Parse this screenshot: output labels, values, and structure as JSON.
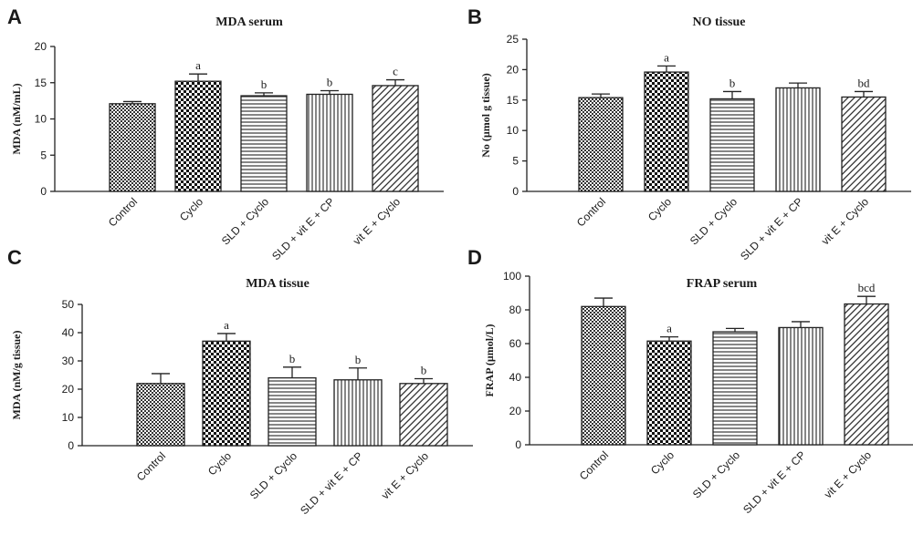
{
  "colors": {
    "ink": "#222222",
    "background": "#ffffff"
  },
  "chart_data": [
    {
      "type": "bar",
      "panel": "A",
      "title": "MDA serum",
      "ylabel": "MDA (nM/mL)",
      "xlabel": "",
      "ylim": [
        0,
        20
      ],
      "yticks": [
        0,
        5,
        10,
        15,
        20
      ],
      "categories": [
        "Control",
        "Cyclo",
        "SLD + Cyclo",
        "SLD + vit E + CP",
        "vit E + Cyclo"
      ],
      "values": [
        12.1,
        15.2,
        13.2,
        13.4,
        14.6
      ],
      "errors": [
        0.3,
        1.0,
        0.4,
        0.5,
        0.8
      ],
      "annotations": [
        "",
        "a",
        "b",
        "b",
        "c"
      ],
      "patterns": [
        "dense-check",
        "coarse-check",
        "horizontal",
        "vertical",
        "diagonal"
      ]
    },
    {
      "type": "bar",
      "panel": "B",
      "title": "NO tissue",
      "ylabel": "No (µmol g tissue)",
      "xlabel": "",
      "ylim": [
        0,
        25
      ],
      "yticks": [
        0,
        5,
        10,
        15,
        20,
        25
      ],
      "categories": [
        "Control",
        "Cyclo",
        "SLD + Cyclo",
        "SLD + vit E + CP",
        "vit E + Cyclo"
      ],
      "values": [
        15.4,
        19.6,
        15.2,
        17.0,
        15.5
      ],
      "errors": [
        0.6,
        1.0,
        1.2,
        0.8,
        0.9
      ],
      "annotations": [
        "",
        "a",
        "b",
        "",
        "bd"
      ],
      "patterns": [
        "dense-check",
        "coarse-check",
        "horizontal",
        "vertical",
        "diagonal"
      ]
    },
    {
      "type": "bar",
      "panel": "C",
      "title": "MDA tissue",
      "ylabel": "MDA (nM/g tissue)",
      "xlabel": "",
      "ylim": [
        0,
        50
      ],
      "yticks": [
        0,
        10,
        20,
        30,
        40,
        50
      ],
      "categories": [
        "Control",
        "Cyclo",
        "SLD + Cyclo",
        "SLD + vit E + CP",
        "vit E + Cyclo"
      ],
      "values": [
        22.0,
        37.0,
        24.0,
        23.3,
        22.0
      ],
      "errors": [
        3.5,
        2.7,
        3.8,
        4.2,
        1.7
      ],
      "annotations": [
        "",
        "a",
        "b",
        "b",
        "b"
      ],
      "patterns": [
        "dense-check",
        "coarse-check",
        "horizontal",
        "vertical",
        "diagonal"
      ]
    },
    {
      "type": "bar",
      "panel": "D",
      "title": "FRAP serum",
      "ylabel": "FRAP (µmol/L)",
      "xlabel": "",
      "ylim": [
        0,
        100
      ],
      "yticks": [
        0,
        20,
        40,
        60,
        80,
        100
      ],
      "categories": [
        "Control",
        "Cyclo",
        "SLD + Cyclo",
        "SLD + vit E + CP",
        "vit E + Cyclo"
      ],
      "values": [
        82.0,
        61.5,
        67.0,
        69.5,
        83.5
      ],
      "errors": [
        5.0,
        2.5,
        2.0,
        3.5,
        4.5
      ],
      "annotations": [
        "",
        "a",
        "",
        "",
        "bcd"
      ],
      "patterns": [
        "dense-check",
        "coarse-check",
        "horizontal",
        "vertical",
        "diagonal"
      ]
    }
  ]
}
